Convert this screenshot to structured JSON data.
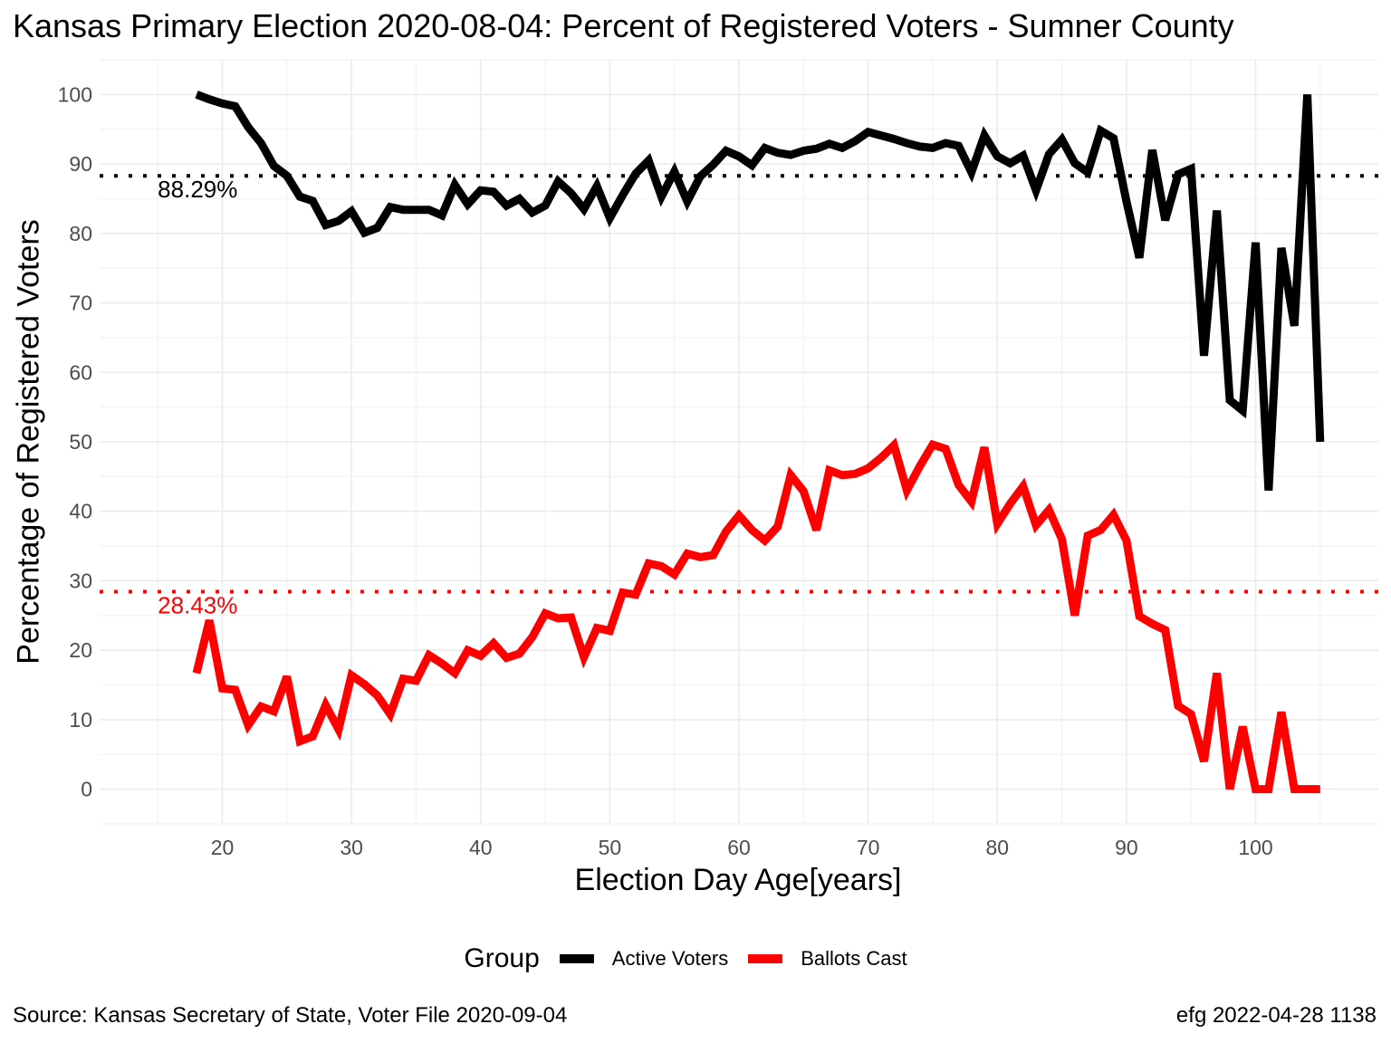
{
  "chart_data": {
    "type": "line",
    "title": "Kansas Primary Election 2020-08-04:  Percent of Registered Voters - Sumner County",
    "xlabel": "Election Day Age[years]",
    "ylabel": "Percentage of Registered Voters",
    "xlim": [
      10.5,
      109.5
    ],
    "ylim": [
      -5,
      105
    ],
    "x_ticks": [
      20,
      30,
      40,
      50,
      60,
      70,
      80,
      90,
      100
    ],
    "y_ticks": [
      0,
      10,
      20,
      30,
      40,
      50,
      60,
      70,
      80,
      90,
      100
    ],
    "grid": true,
    "legend": {
      "title": "Group",
      "placement": "bottom"
    },
    "x": [
      18,
      19,
      20,
      21,
      22,
      23,
      24,
      25,
      26,
      27,
      28,
      29,
      30,
      31,
      32,
      33,
      34,
      35,
      36,
      37,
      38,
      39,
      40,
      41,
      42,
      43,
      44,
      45,
      46,
      47,
      48,
      49,
      50,
      51,
      52,
      53,
      54,
      55,
      56,
      57,
      58,
      59,
      60,
      61,
      62,
      63,
      64,
      65,
      66,
      67,
      68,
      69,
      70,
      71,
      72,
      73,
      74,
      75,
      76,
      77,
      78,
      79,
      80,
      81,
      82,
      83,
      84,
      85,
      86,
      87,
      88,
      89,
      90,
      91,
      92,
      93,
      94,
      95,
      96,
      97,
      98,
      99,
      100,
      101,
      102,
      103,
      104,
      105
    ],
    "series": [
      {
        "name": "Active Voters",
        "color": "#000000",
        "values": [
          100,
          99.3,
          98.7,
          98.3,
          95.3,
          93,
          89.7,
          88.3,
          85.3,
          84.7,
          81.2,
          81.8,
          83.2,
          80.1,
          80.8,
          83.8,
          83.4,
          83.4,
          83.4,
          82.6,
          87,
          84.2,
          86.2,
          86,
          84,
          85,
          83,
          84,
          87.5,
          85.8,
          83.5,
          86.8,
          82.2,
          85.5,
          88.6,
          90.5,
          85.3,
          88.9,
          84.6,
          88.2,
          89.9,
          91.9,
          91.1,
          89.8,
          92.3,
          91.6,
          91.3,
          91.9,
          92.2,
          92.9,
          92.3,
          93.3,
          94.6,
          94.1,
          93.6,
          93,
          92.5,
          92.3,
          93,
          92.6,
          88.8,
          94.1,
          91.1,
          90.1,
          91.2,
          86.2,
          91.4,
          93.5,
          90.1,
          88.8,
          94.8,
          93.7,
          84.6,
          76.5,
          92,
          81.9,
          88.5,
          89.3,
          62.4,
          83.3,
          56,
          54.5,
          78.7,
          43,
          77.9,
          66.7,
          100,
          50
        ]
      },
      {
        "name": "Ballots Cast",
        "color": "#ff0000",
        "values": [
          16.7,
          24.3,
          14.5,
          14.3,
          9.2,
          11.9,
          11.2,
          16.2,
          6.9,
          7.6,
          12.1,
          8.6,
          16.4,
          15.1,
          13.5,
          10.8,
          15.9,
          15.6,
          19.3,
          18.1,
          16.7,
          20,
          19.2,
          21,
          18.9,
          19.5,
          21.9,
          25.3,
          24.6,
          24.7,
          19,
          23.2,
          22.8,
          28.3,
          28,
          32.5,
          32.1,
          30.9,
          33.9,
          33.4,
          33.7,
          37.1,
          39.4,
          37.3,
          35.8,
          37.8,
          45.2,
          42.9,
          37.3,
          45.9,
          45.2,
          45.4,
          46.2,
          47.7,
          49.5,
          43,
          46.5,
          49.6,
          49,
          43.8,
          41.4,
          49.2,
          38.2,
          41.1,
          43.6,
          38,
          40.2,
          36,
          25,
          36.5,
          37.3,
          39.5,
          35.8,
          24.9,
          23.8,
          22.9,
          12,
          10.8,
          4,
          16.7,
          0,
          9,
          0,
          0,
          11.1,
          0,
          0,
          0
        ]
      }
    ],
    "reference_lines": [
      {
        "series": "Active Voters",
        "value": 88.29,
        "label": "88.29%",
        "color": "#000000"
      },
      {
        "series": "Ballots Cast",
        "value": 28.43,
        "label": "28.43%",
        "color": "#ff0000"
      }
    ]
  },
  "footer": {
    "source": "Source:  Kansas Secretary of State, Voter File  2020-09-04",
    "stamp": "efg 2022-04-28 1138"
  }
}
